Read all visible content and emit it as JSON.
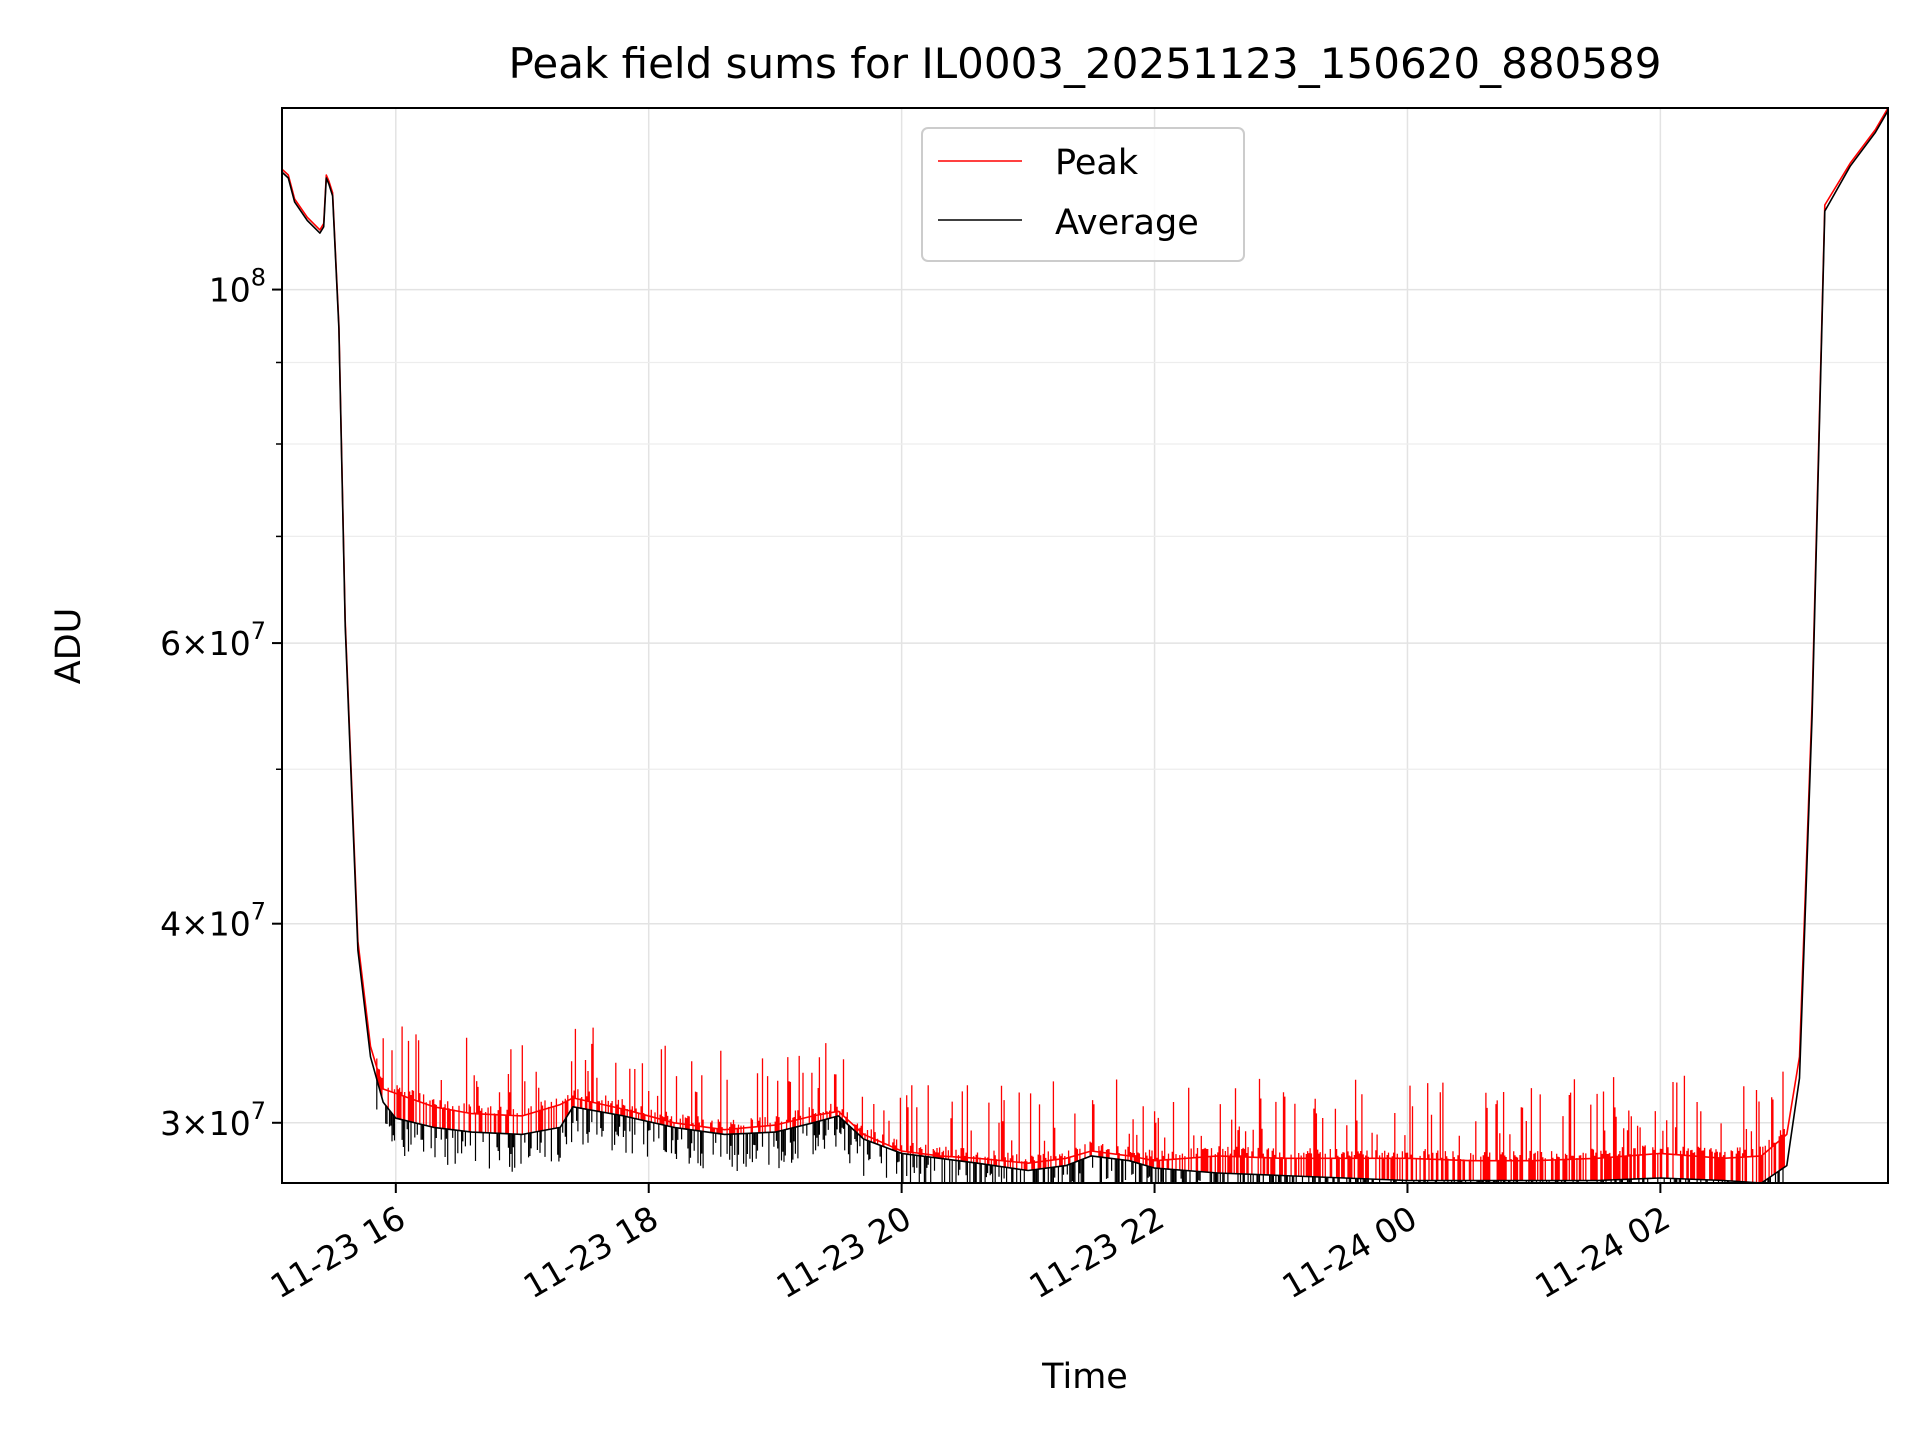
{
  "chart_data": {
    "type": "line",
    "title": "Peak field sums for IL0003_20251123_150620_880589",
    "xlabel": "Time",
    "ylabel": "ADU",
    "yscale": "log",
    "grid": true,
    "legend_position": "top-center",
    "x_unit": "hours since 11-23 00:00",
    "xlim": [
      15.1,
      27.8
    ],
    "ylim": [
      27500000,
      130000000
    ],
    "x_ticks": [
      {
        "value": 16,
        "label": "11-23 16"
      },
      {
        "value": 18,
        "label": "11-23 18"
      },
      {
        "value": 20,
        "label": "11-23 20"
      },
      {
        "value": 22,
        "label": "11-23 22"
      },
      {
        "value": 24,
        "label": "11-24 00"
      },
      {
        "value": 26,
        "label": "11-24 02"
      }
    ],
    "y_major_ticks": [
      {
        "value": 100000000,
        "base": "10",
        "exp": "8",
        "mant": ""
      },
      {
        "value": 60000000,
        "base": "10",
        "exp": "7",
        "mant": "6×"
      },
      {
        "value": 40000000,
        "base": "10",
        "exp": "7",
        "mant": "4×"
      },
      {
        "value": 30000000,
        "base": "10",
        "exp": "7",
        "mant": "3×"
      }
    ],
    "y_minor_ticks": [
      90000000,
      80000000,
      70000000,
      50000000
    ],
    "series": [
      {
        "name": "Peak",
        "color": "#ff0000",
        "x": [
          15.1,
          15.15,
          15.2,
          15.3,
          15.4,
          15.43,
          15.45,
          15.47,
          15.5,
          15.55,
          15.6,
          15.7,
          15.8,
          15.9,
          16.0,
          16.3,
          16.6,
          17.0,
          17.3,
          17.4,
          17.8,
          18.2,
          18.6,
          19.0,
          19.3,
          19.5,
          19.7,
          20.0,
          20.3,
          20.6,
          21.0,
          21.3,
          21.5,
          21.8,
          22.0,
          22.5,
          23.0,
          23.5,
          24.0,
          24.5,
          25.0,
          25.5,
          26.0,
          26.5,
          26.8,
          27.0,
          27.1,
          27.2,
          27.3,
          27.5,
          27.7,
          27.8
        ],
        "y": [
          119000000,
          118000000,
          114000000,
          111000000,
          109000000,
          110000000,
          118000000,
          117000000,
          115000000,
          95000000,
          62000000,
          39000000,
          33500000,
          31500000,
          31300000,
          30700000,
          30400000,
          30300000,
          30800000,
          31100000,
          30600000,
          30000000,
          29700000,
          29900000,
          30300000,
          30500000,
          29500000,
          28800000,
          28600000,
          28500000,
          28300000,
          28500000,
          28800000,
          28600000,
          28400000,
          28600000,
          28500000,
          28500000,
          28500000,
          28400000,
          28400000,
          28500000,
          28700000,
          28500000,
          28600000,
          29500000,
          33000000,
          55000000,
          113000000,
          120000000,
          126000000,
          130000000
        ]
      },
      {
        "name": "Average",
        "color": "#000000",
        "x": [
          15.1,
          15.15,
          15.2,
          15.3,
          15.4,
          15.43,
          15.45,
          15.47,
          15.5,
          15.55,
          15.6,
          15.7,
          15.8,
          15.9,
          16.0,
          16.3,
          16.6,
          17.0,
          17.3,
          17.4,
          17.8,
          18.2,
          18.6,
          19.0,
          19.3,
          19.5,
          19.7,
          20.0,
          20.3,
          20.6,
          21.0,
          21.3,
          21.5,
          21.8,
          22.0,
          22.5,
          23.0,
          23.5,
          24.0,
          24.5,
          25.0,
          25.5,
          26.0,
          26.5,
          26.8,
          27.0,
          27.1,
          27.2,
          27.3,
          27.5,
          27.7,
          27.8
        ],
        "y": [
          118500000,
          117500000,
          113500000,
          110500000,
          108500000,
          109500000,
          117500000,
          116500000,
          114500000,
          94500000,
          61500000,
          38500000,
          33000000,
          30900000,
          30200000,
          29800000,
          29600000,
          29500000,
          29800000,
          30700000,
          30300000,
          29800000,
          29500000,
          29600000,
          30000000,
          30300000,
          29300000,
          28700000,
          28500000,
          28300000,
          28000000,
          28200000,
          28600000,
          28400000,
          28100000,
          27900000,
          27800000,
          27700000,
          27600000,
          27600000,
          27600000,
          27600000,
          27700000,
          27600000,
          27500000,
          28200000,
          32000000,
          54000000,
          112000000,
          119500000,
          125500000,
          129500000
        ]
      }
    ]
  }
}
